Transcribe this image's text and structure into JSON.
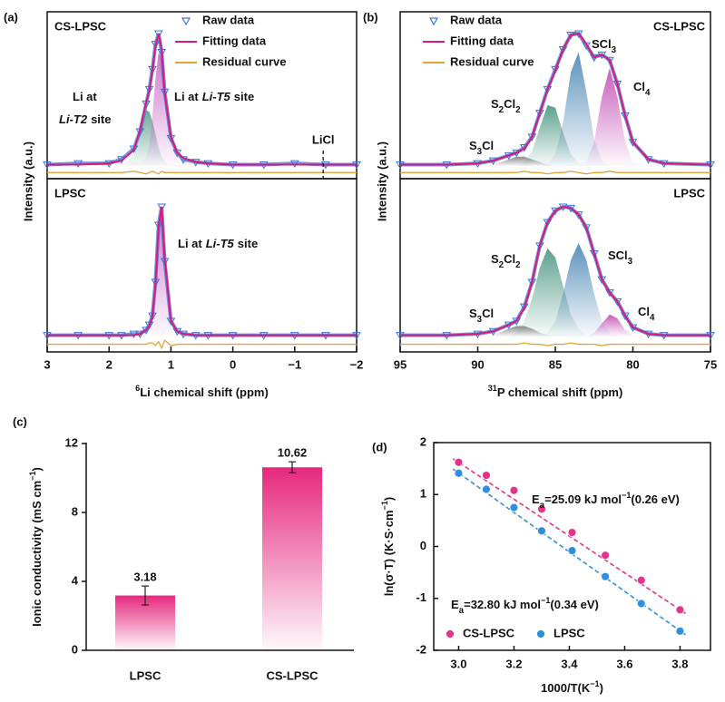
{
  "chart_data": [
    {
      "type": "spectrum",
      "panel_label": "(a)",
      "xlabel": [
        "6",
        "Li chemical shift (ppm)"
      ],
      "ylabel": "Intensity (a.u.)",
      "xlim": [
        3,
        -2
      ],
      "xticks": [
        3,
        2,
        1,
        0,
        {
          "value": -1,
          "label": "−1"
        },
        {
          "value": -2,
          "label": "−2"
        }
      ],
      "x": [
        3,
        2.5,
        2,
        1.8,
        1.6,
        1.5,
        1.4,
        1.35,
        1.3,
        1.25,
        1.2,
        1.15,
        1.1,
        1,
        0.9,
        0.8,
        0.6,
        0.4,
        0,
        -0.5,
        -1,
        -1.5,
        -2
      ],
      "subplots": [
        {
          "sample": "CS-LPSC",
          "legend": "upper right",
          "series": [
            {
              "name": "Raw data",
              "color": "#3f73d6",
              "values": [
                0.01,
                0.02,
                0.02,
                0.05,
                0.13,
                0.26,
                0.47,
                0.58,
                0.73,
                0.92,
                1.0,
                0.86,
                0.56,
                0.21,
                0.1,
                0.05,
                0.03,
                0.02,
                0.01,
                0.01,
                0.02,
                0.01,
                0.01
              ]
            },
            {
              "name": "Fitting data",
              "color": "#d81b7a",
              "values": [
                0.01,
                0.01,
                0.02,
                0.04,
                0.12,
                0.27,
                0.48,
                0.57,
                0.72,
                0.9,
                1.0,
                0.88,
                0.55,
                0.22,
                0.1,
                0.06,
                0.03,
                0.02,
                0.01,
                0.01,
                0.01,
                0.01,
                0.01
              ]
            },
            {
              "name": "Residual curve",
              "color": "#e0a23a",
              "values": [
                -0.05,
                -0.05,
                -0.05,
                -0.05,
                -0.04,
                -0.05,
                -0.06,
                -0.05,
                -0.04,
                -0.05,
                -0.06,
                -0.04,
                -0.05,
                -0.05,
                -0.05,
                -0.05,
                -0.05,
                -0.05,
                -0.05,
                -0.05,
                -0.05,
                -0.05,
                -0.05
              ]
            }
          ],
          "components": [
            {
              "label": [
                "Li at",
                "Li-T2",
                "site"
              ],
              "color": "#4f9a82",
              "values": [
                0,
                0,
                0,
                0,
                0.08,
                0.25,
                0.42,
                0.41,
                0.34,
                0.24,
                0.14,
                0.07,
                0.03,
                0,
                0,
                0,
                0,
                0,
                0,
                0,
                0,
                0,
                0
              ]
            },
            {
              "label": [
                "Li at",
                "Li-T5",
                "site"
              ],
              "color": "#c45ec6",
              "values": [
                0,
                0,
                0.01,
                0.03,
                0.03,
                0.02,
                0.06,
                0.16,
                0.38,
                0.66,
                0.86,
                0.81,
                0.52,
                0.22,
                0.1,
                0.06,
                0.03,
                0.02,
                0,
                0,
                0,
                0,
                0
              ]
            }
          ],
          "markers": [
            {
              "label": "LiCl",
              "x": -1.46
            }
          ]
        },
        {
          "sample": "LPSC",
          "series": [
            {
              "color": "#3f73d6",
              "values": [
                0.01,
                0.01,
                0.01,
                0.01,
                0.02,
                0.02,
                0.05,
                0.09,
                0.16,
                0.42,
                0.86,
                1.0,
                0.58,
                0.12,
                0.04,
                0.02,
                0.01,
                0.01,
                0.01,
                0.01,
                0.01,
                0.01,
                0.01
              ]
            },
            {
              "color": "#d81b7a",
              "values": [
                0.01,
                0.01,
                0.01,
                0.01,
                0.01,
                0.02,
                0.05,
                0.08,
                0.15,
                0.4,
                0.85,
                1.0,
                0.6,
                0.12,
                0.04,
                0.02,
                0.01,
                0.01,
                0.01,
                0.01,
                0.01,
                0.01,
                0.01
              ]
            },
            {
              "color": "#e0a23a",
              "values": [
                -0.06,
                -0.06,
                -0.06,
                -0.06,
                -0.06,
                -0.06,
                -0.06,
                -0.05,
                -0.05,
                -0.07,
                -0.04,
                -0.09,
                -0.03,
                -0.07,
                -0.06,
                -0.06,
                -0.06,
                -0.06,
                -0.06,
                -0.06,
                -0.06,
                -0.06,
                -0.06
              ]
            }
          ],
          "components": [
            {
              "label": [
                "Li at",
                "Li-T5",
                "site"
              ],
              "color": "#c45ec6",
              "values": [
                0,
                0,
                0,
                0,
                0,
                0.01,
                0.04,
                0.07,
                0.14,
                0.39,
                0.84,
                0.99,
                0.59,
                0.11,
                0.03,
                0.01,
                0,
                0,
                0,
                0,
                0,
                0,
                0
              ]
            }
          ]
        }
      ]
    },
    {
      "type": "spectrum",
      "panel_label": "(b)",
      "xlabel": [
        "31",
        "P chemical shift (ppm)"
      ],
      "ylabel": "Intensity (a.u.)",
      "xlim": [
        95,
        75
      ],
      "xticks": [
        95,
        90,
        85,
        80,
        75
      ],
      "x": [
        95,
        92,
        90,
        89,
        88,
        87.5,
        87,
        86.5,
        86,
        85.5,
        85,
        84.5,
        84,
        83.5,
        83,
        82.5,
        82,
        81.5,
        81,
        80.5,
        80,
        79,
        78,
        75
      ],
      "subplots": [
        {
          "sample": "CS-LPSC",
          "legend": "upper left",
          "series": [
            {
              "name": "Raw data",
              "color": "#3f73d6",
              "values": [
                0.01,
                0.01,
                0.02,
                0.04,
                0.08,
                0.1,
                0.14,
                0.22,
                0.4,
                0.58,
                0.73,
                0.88,
                0.99,
                1.0,
                0.91,
                0.82,
                0.84,
                0.8,
                0.62,
                0.38,
                0.18,
                0.05,
                0.02,
                0.01
              ]
            },
            {
              "name": "Fitting data",
              "color": "#d81b7a",
              "values": [
                0.01,
                0.01,
                0.02,
                0.04,
                0.08,
                0.1,
                0.13,
                0.22,
                0.4,
                0.58,
                0.72,
                0.88,
                0.99,
                1.0,
                0.92,
                0.82,
                0.84,
                0.8,
                0.62,
                0.38,
                0.18,
                0.05,
                0.02,
                0.01
              ]
            },
            {
              "name": "Residual curve",
              "color": "#e0a23a",
              "values": [
                -0.05,
                -0.05,
                -0.05,
                -0.05,
                -0.05,
                -0.05,
                -0.04,
                -0.05,
                -0.05,
                -0.06,
                -0.05,
                -0.05,
                -0.04,
                -0.05,
                -0.06,
                -0.05,
                -0.05,
                -0.04,
                -0.05,
                -0.05,
                -0.05,
                -0.05,
                -0.05,
                -0.05
              ]
            }
          ],
          "components": [
            {
              "label": [
                "S",
                "3",
                "Cl"
              ],
              "color": "#777777",
              "values": [
                0,
                0,
                0,
                0.01,
                0.05,
                0.07,
                0.07,
                0.05,
                0.03,
                0.01,
                0,
                0,
                0,
                0,
                0,
                0,
                0,
                0,
                0,
                0,
                0,
                0,
                0,
                0
              ]
            },
            {
              "label": [
                "S",
                "2",
                "Cl",
                "2"
              ],
              "color": "#3f8f7a",
              "values": [
                0,
                0,
                0,
                0,
                0,
                0,
                0.03,
                0.11,
                0.29,
                0.46,
                0.44,
                0.25,
                0.09,
                0.02,
                0,
                0,
                0,
                0,
                0,
                0,
                0,
                0,
                0,
                0
              ]
            },
            {
              "label": [
                "SCl",
                "3"
              ],
              "color": "#3f7fb0",
              "values": [
                0,
                0,
                0,
                0,
                0,
                0,
                0,
                0,
                0,
                0.02,
                0.09,
                0.33,
                0.71,
                0.86,
                0.56,
                0.2,
                0.04,
                0,
                0,
                0,
                0,
                0,
                0,
                0
              ]
            },
            {
              "label": [
                "Cl",
                "4"
              ],
              "color": "#c040b0",
              "values": [
                0,
                0,
                0,
                0,
                0,
                0,
                0,
                0,
                0,
                0,
                0,
                0,
                0,
                0,
                0.03,
                0.18,
                0.52,
                0.74,
                0.52,
                0.18,
                0.03,
                0,
                0,
                0
              ]
            }
          ]
        },
        {
          "sample": "LPSC",
          "series": [
            {
              "color": "#3f73d6",
              "values": [
                0.01,
                0.01,
                0.02,
                0.04,
                0.09,
                0.12,
                0.23,
                0.42,
                0.7,
                0.88,
                0.97,
                1.0,
                0.99,
                0.94,
                0.84,
                0.64,
                0.44,
                0.34,
                0.27,
                0.16,
                0.07,
                0.02,
                0.01,
                0.01
              ]
            },
            {
              "color": "#d81b7a",
              "values": [
                0.01,
                0.01,
                0.02,
                0.04,
                0.09,
                0.12,
                0.22,
                0.42,
                0.7,
                0.88,
                0.97,
                1.0,
                0.99,
                0.94,
                0.84,
                0.64,
                0.44,
                0.34,
                0.27,
                0.16,
                0.07,
                0.02,
                0.01,
                0.01
              ]
            },
            {
              "color": "#e0a23a",
              "values": [
                -0.06,
                -0.06,
                -0.06,
                -0.06,
                -0.06,
                -0.06,
                -0.05,
                -0.06,
                -0.06,
                -0.07,
                -0.06,
                -0.06,
                -0.05,
                -0.06,
                -0.06,
                -0.06,
                -0.07,
                -0.06,
                -0.06,
                -0.06,
                -0.06,
                -0.06,
                -0.06,
                -0.06
              ]
            }
          ],
          "components": [
            {
              "label": [
                "S",
                "3",
                "Cl"
              ],
              "color": "#777777",
              "values": [
                0,
                0,
                0,
                0.01,
                0.06,
                0.08,
                0.08,
                0.06,
                0.03,
                0.01,
                0,
                0,
                0,
                0,
                0,
                0,
                0,
                0,
                0,
                0,
                0,
                0,
                0,
                0
              ]
            },
            {
              "label": [
                "S",
                "2",
                "Cl",
                "2"
              ],
              "color": "#3f8f7a",
              "values": [
                0,
                0,
                0,
                0,
                0,
                0.03,
                0.12,
                0.29,
                0.53,
                0.68,
                0.61,
                0.39,
                0.17,
                0.06,
                0.01,
                0,
                0,
                0,
                0,
                0,
                0,
                0,
                0,
                0
              ]
            },
            {
              "label": [
                "SCl",
                "3"
              ],
              "color": "#3f7fb0",
              "values": [
                0,
                0,
                0,
                0,
                0,
                0,
                0,
                0,
                0.01,
                0.03,
                0.12,
                0.33,
                0.59,
                0.72,
                0.59,
                0.33,
                0.12,
                0.03,
                0.01,
                0,
                0,
                0,
                0,
                0
              ]
            },
            {
              "label": [
                "Cl",
                "4"
              ],
              "color": "#c040b0",
              "values": [
                0,
                0,
                0,
                0,
                0,
                0,
                0,
                0,
                0,
                0,
                0,
                0,
                0,
                0,
                0,
                0.03,
                0.1,
                0.17,
                0.14,
                0.05,
                0.01,
                0,
                0,
                0
              ]
            }
          ]
        }
      ]
    },
    {
      "type": "bar",
      "panel_label": "(c)",
      "ylabel": [
        "Ionic conductivity (mS cm",
        "−1",
        ")"
      ],
      "categories": [
        "LPSC",
        "CS-LPSC"
      ],
      "values": [
        3.18,
        10.62
      ],
      "errors": [
        0.55,
        0.32
      ],
      "color": "#e6287f",
      "ylim": [
        0,
        12
      ],
      "yticks": [
        0,
        4,
        8,
        12
      ]
    },
    {
      "type": "scatter",
      "panel_label": "(d)",
      "xlabel": [
        "1000/T(K",
        "−1",
        ")"
      ],
      "ylabel": [
        "ln(σ·T) (K·S·cm",
        "−1",
        ")"
      ],
      "xlim": [
        2.91,
        3.91
      ],
      "xticks": [
        {
          "value": 3,
          "label": "3.0"
        },
        3.2,
        3.4,
        3.6,
        3.8
      ],
      "ylim": [
        -2,
        2
      ],
      "yticks": [
        -2,
        -1,
        0,
        1,
        2
      ],
      "legend": "lower left",
      "series": [
        {
          "name": "CS-LPSC",
          "color": "#e3338c",
          "x": [
            3,
            3.1,
            3.2,
            3.3,
            3.41,
            3.53,
            3.66,
            3.8
          ],
          "values": [
            1.62,
            1.37,
            1.08,
            0.72,
            0.27,
            -0.17,
            -0.65,
            -1.22
          ],
          "fit": {
            "x": [
              2.98,
              3.82
            ],
            "values": [
              1.69,
              -1.29
            ]
          },
          "annotation": [
            "E",
            "a",
            "=25.09 kJ mol",
            "−1",
            "(0.26 eV)"
          ]
        },
        {
          "name": "LPSC",
          "color": "#2f8fdd",
          "x": [
            3,
            3.1,
            3.2,
            3.3,
            3.41,
            3.53,
            3.66,
            3.8
          ],
          "values": [
            1.41,
            1.1,
            0.75,
            0.3,
            -0.08,
            -0.58,
            -1.1,
            -1.63
          ],
          "fit": {
            "x": [
              2.98,
              3.82
            ],
            "values": [
              1.49,
              -1.7
            ]
          },
          "annotation": [
            "E",
            "a",
            "=32.80 kJ mol",
            "−1",
            "(0.34 eV)"
          ]
        }
      ]
    }
  ]
}
